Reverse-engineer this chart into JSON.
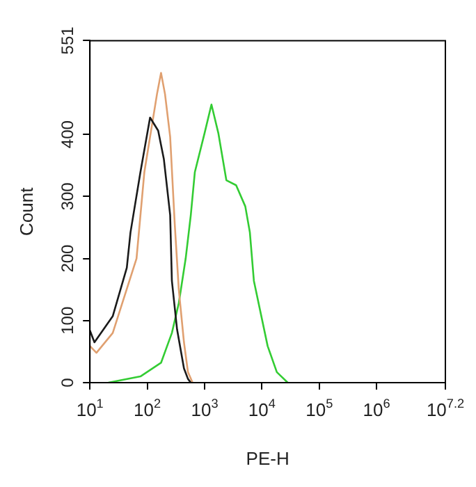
{
  "chart_data": {
    "type": "line",
    "xlabel": "PE-H",
    "ylabel": "Count",
    "log": "x",
    "grid": false,
    "legend": false,
    "marker": "none",
    "line_style": "solid",
    "xlim": [
      10,
      15848932
    ],
    "xticks": [
      {
        "value": 10,
        "label": "10$^{1}$"
      },
      {
        "value": 100,
        "label": "10$^{2}$"
      },
      {
        "value": 1000,
        "label": "10$^{3}$"
      },
      {
        "value": 10000,
        "label": "10$^{4}$"
      },
      {
        "value": 100000,
        "label": "10$^{5}$"
      },
      {
        "value": 1000000,
        "label": "10$^{6}$"
      },
      {
        "value": 15848932,
        "label": "10$^{7.2}$"
      }
    ],
    "ylim": [
      0,
      551
    ],
    "yticks": [
      0,
      100,
      200,
      300,
      400,
      551
    ],
    "series": [
      {
        "color": "#1a1a1a",
        "x": [
          10,
          12,
          25,
          44,
          51,
          76,
          112,
          155,
          195,
          251,
          269,
          331,
          437,
          513,
          575
        ],
        "values": [
          84,
          65,
          107,
          185,
          242,
          339,
          427,
          406,
          360,
          270,
          164,
          86,
          23,
          6,
          0
        ]
      },
      {
        "color": "#e0a070",
        "x": [
          10,
          13,
          25,
          65,
          89,
          148,
          174,
          204,
          251,
          302,
          355,
          437,
          513,
          617
        ],
        "values": [
          59,
          48,
          80,
          200,
          339,
          465,
          499,
          465,
          396,
          255,
          150,
          65,
          17,
          0
        ]
      },
      {
        "color": "#33cc33",
        "x": [
          21,
          76,
          174,
          269,
          355,
          468,
          575,
          676,
          1000,
          1318,
          1738,
          2399,
          3548,
          5129,
          6166,
          7244,
          12589,
          18197,
          28184
        ],
        "values": [
          0,
          10,
          32,
          80,
          128,
          200,
          270,
          339,
          402,
          448,
          402,
          326,
          318,
          284,
          242,
          164,
          59,
          17,
          0
        ]
      }
    ]
  }
}
